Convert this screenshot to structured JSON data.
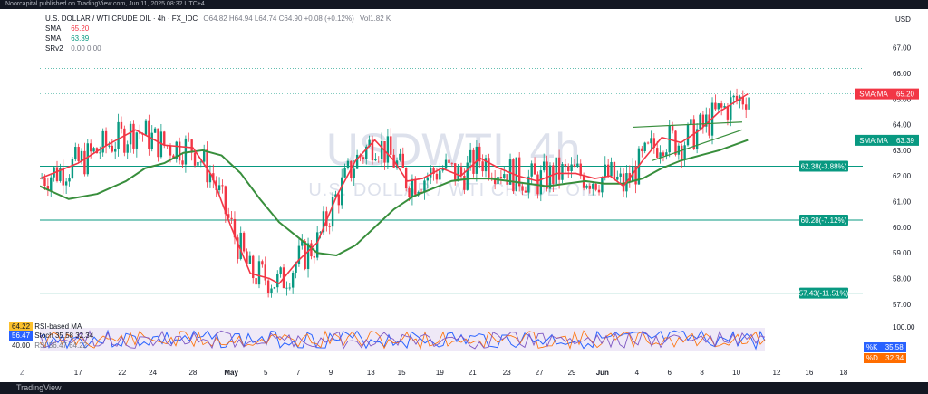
{
  "publisher": "Noorcapital published on TradingView.com, Jun 11, 2025 08:32 UTC+4",
  "header": {
    "symbol": "U.S. DOLLAR / WTI CRUDE OIL · 4h · FX_IDC",
    "ohlc": "O64.82 H64.94 L64.74 C64.90 +0.08 (+0.12%)",
    "volume": "Vol1.82 K",
    "currency": "USD"
  },
  "indicators": [
    {
      "label": "SMA",
      "value": "65.20",
      "color": "#f23645"
    },
    {
      "label": "SMA",
      "value": "63.39",
      "color": "#089981"
    },
    {
      "label": "SRv2",
      "value": "0.00  0.00",
      "color": "#787b86"
    }
  ],
  "watermark": {
    "title": "USDWTI, 4h",
    "subtitle": "U.S. DOLLAR / WTI CRUDE OIL"
  },
  "chart_data": {
    "type": "line",
    "ylim": [
      56.5,
      67.8
    ],
    "y_ticks": [
      "67.00",
      "66.00",
      "65.00",
      "64.00",
      "63.00",
      "62.00",
      "61.00",
      "60.00",
      "59.00",
      "58.00",
      "57.00"
    ],
    "x_ticks": [
      "17",
      "22",
      "24",
      "28",
      "May",
      "5",
      "7",
      "9",
      "13",
      "15",
      "19",
      "21",
      "23",
      "27",
      "29",
      "Jun",
      "4",
      "6",
      "8",
      "10",
      "12",
      "16",
      "18"
    ],
    "x_tick_pos": [
      0.5,
      2.8,
      4.4,
      6.5,
      8.5,
      10.3,
      12.0,
      13.7,
      15.8,
      17.4,
      19.4,
      21.1,
      22.9,
      24.6,
      26.3,
      27.9,
      29.7,
      31.4,
      33.1,
      34.9,
      37.0,
      38.7,
      40.5
    ],
    "x_range": [
      -1.5,
      41.5
    ],
    "sma_red": {
      "x": [
        -1.5,
        0.5,
        2.0,
        3.5,
        5.0,
        6.5,
        7.5,
        8.5,
        9.5,
        10.5,
        11.0,
        12.0,
        13.0,
        14.0,
        15.0,
        16.0,
        17.0,
        17.7,
        18.5,
        19.5,
        20.5,
        21.5,
        22.5,
        23.5,
        24.5,
        25.5,
        26.5,
        27.5,
        28.3,
        29.0,
        30.0,
        31.0,
        32.0,
        33.0,
        34.0,
        35.5
      ],
      "y": [
        61.9,
        62.5,
        63.2,
        63.8,
        63.2,
        63.1,
        62.0,
        60.0,
        58.2,
        58.0,
        57.8,
        58.7,
        59.4,
        61.2,
        62.6,
        63.4,
        62.6,
        61.8,
        61.9,
        62.3,
        62.0,
        62.7,
        62.3,
        62.0,
        61.8,
        62.1,
        62.1,
        61.9,
        62.0,
        61.6,
        62.6,
        63.5,
        63.3,
        63.8,
        64.5,
        65.2
      ]
    },
    "sma_green": {
      "x": [
        -1.5,
        0.0,
        1.5,
        3.0,
        4.0,
        5.0,
        6.0,
        7.0,
        8.0,
        9.0,
        10.0,
        11.0,
        12.0,
        13.0,
        14.0,
        15.0,
        16.0,
        17.0,
        18.0,
        19.0,
        20.0,
        21.0,
        22.0,
        23.0,
        24.0,
        25.0,
        26.0,
        27.0,
        28.0,
        29.0,
        30.0,
        31.0,
        32.0,
        33.0,
        34.0,
        35.5
      ],
      "y": [
        61.6,
        61.1,
        61.3,
        61.8,
        62.3,
        62.5,
        62.9,
        63.0,
        62.8,
        62.1,
        61.1,
        60.2,
        59.6,
        59.0,
        58.9,
        59.3,
        60.0,
        60.7,
        61.2,
        61.5,
        61.8,
        61.9,
        61.9,
        61.8,
        61.7,
        61.6,
        61.7,
        61.8,
        61.7,
        61.7,
        61.9,
        62.3,
        62.6,
        62.8,
        63.0,
        63.4
      ]
    },
    "horizontal_levels": [
      {
        "price": 62.38,
        "label": "62.38(-3.88%)"
      },
      {
        "price": 60.28,
        "label": "60.28(-7.12%)"
      },
      {
        "price": 57.43,
        "label": "57.43(-11.51%)"
      }
    ],
    "dotted_levels": [
      65.2,
      66.2
    ],
    "trend_lines": [
      {
        "x": [
          29.5,
          35.2
        ],
        "y": [
          63.9,
          64.1
        ]
      },
      {
        "x": [
          30.5,
          35.2
        ],
        "y": [
          62.6,
          63.8
        ]
      }
    ],
    "price_tags": [
      {
        "label": "SMA:MA",
        "value": "65.20",
        "price": 65.2,
        "color": "#f23645"
      },
      {
        "label": "SMA:MA",
        "value": "63.39",
        "price": 63.39,
        "color": "#089981"
      }
    ]
  },
  "rsi_panel": {
    "labels": [
      {
        "name": "RSI-based MA",
        "value": "64.22",
        "bg": "#fbc02d"
      },
      {
        "name": "Stoch 35.58 32.34",
        "value": "56.47",
        "bg": "#2962ff"
      },
      {
        "name": "RSI 56.47 64.22",
        "value": "40.00",
        "bg": "#ffffff"
      }
    ],
    "right_axis": [
      "100.00"
    ],
    "k": {
      "label": "%K",
      "value": "35.58",
      "color": "#2962ff"
    },
    "d": {
      "label": "%D",
      "value": "32.34",
      "color": "#ff6d00"
    }
  },
  "footer": {
    "z_label": "Z",
    "brand": "TradingView"
  }
}
